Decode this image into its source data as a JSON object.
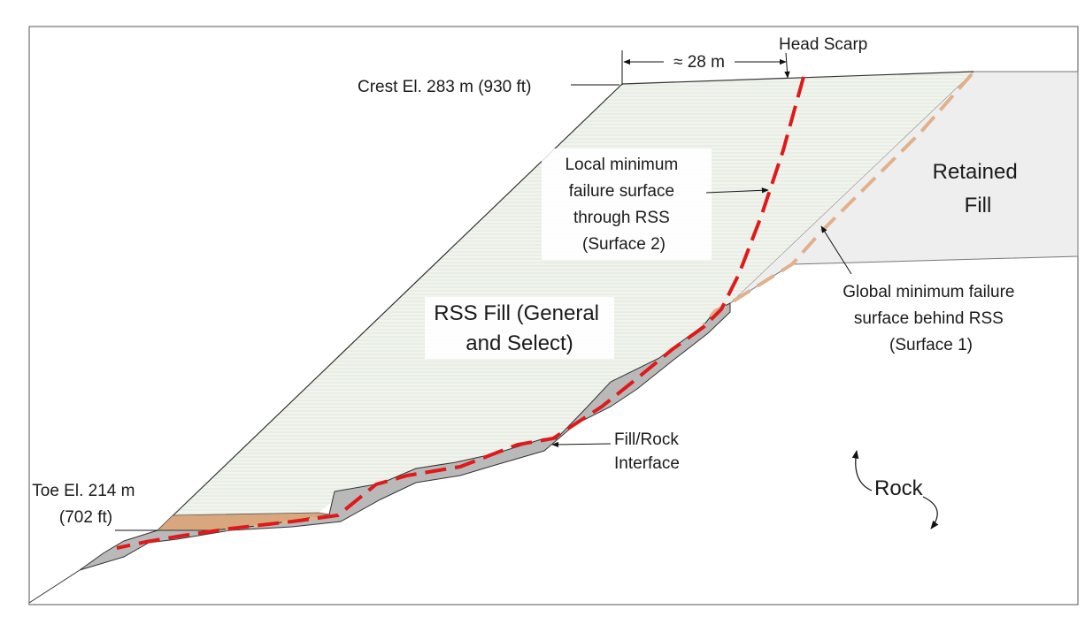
{
  "labels": {
    "head_scarp": "Head Scarp",
    "distance": "≈ 28 m",
    "crest": "Crest El. 283 m (930 ft)",
    "retained_fill": [
      "Retained",
      "Fill"
    ],
    "local_surface": [
      "Local minimum",
      "failure surface",
      "through RSS",
      "(Surface 2)"
    ],
    "rss_fill": [
      "RSS Fill (General",
      "and Select)"
    ],
    "global_surface": [
      "Global minimum failure",
      "surface behind RSS",
      "(Surface 1)"
    ],
    "interface": [
      "Fill/Rock",
      "Interface"
    ],
    "toe": [
      "Toe El. 214 m",
      "(702 ft)"
    ],
    "rock": "Rock"
  },
  "colors": {
    "rss_fill": "#f1f4ee",
    "rss_stripe": "#dfe8da",
    "retained_fill": "#eeeeee",
    "interface_fill": "#b9b9b9",
    "toe_fill": "#d9a77e",
    "surface_2": "#e0191a",
    "surface_1": "#e2b08a",
    "outline": "#333333"
  }
}
